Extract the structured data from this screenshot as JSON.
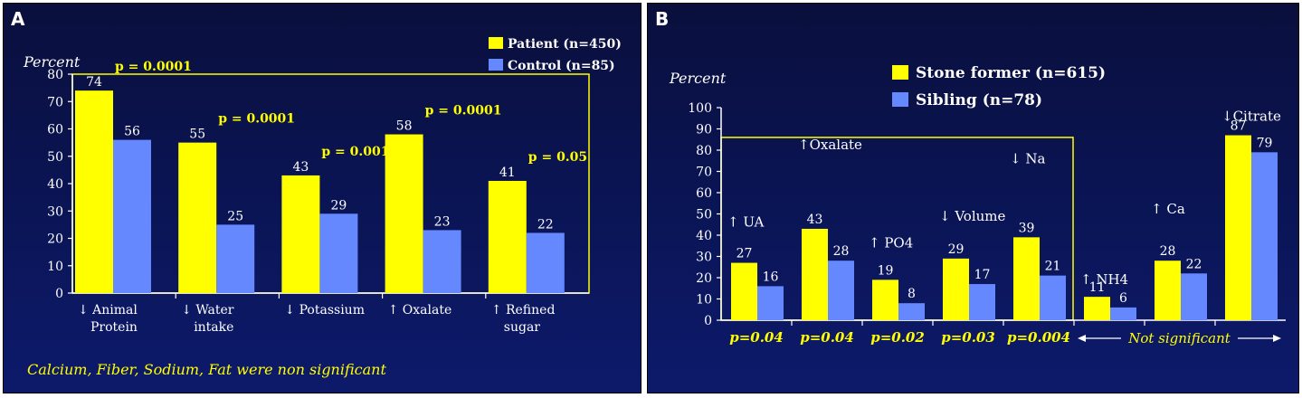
{
  "colors": {
    "series1": "#ffff00",
    "series2": "#6688ff",
    "text": "#ffffff",
    "highlight": "#ffff00",
    "axis": "#ffffff"
  },
  "chart_data": [
    {
      "type": "bar",
      "panel_label": "A",
      "ylabel": "Percent",
      "ylim": [
        0,
        80
      ],
      "yticks": [
        "0",
        "10",
        "20",
        "30",
        "40",
        "50",
        "60",
        "70",
        "80"
      ],
      "legend": [
        "Patient (n=450)",
        "Control (n=85)"
      ],
      "categories": [
        {
          "line1": "↓ Animal",
          "line2": "Protein"
        },
        {
          "line1": "↓ Water",
          "line2": "intake"
        },
        {
          "line1": "↓ Potassium",
          "line2": ""
        },
        {
          "line1": "↑ Oxalate",
          "line2": ""
        },
        {
          "line1": "↑ Refined",
          "line2": "sugar"
        }
      ],
      "series": [
        {
          "name": "Patient (n=450)",
          "values": [
            74,
            55,
            43,
            58,
            41
          ]
        },
        {
          "name": "Control (n=85)",
          "values": [
            56,
            25,
            29,
            23,
            22
          ]
        }
      ],
      "value_labels": [
        [
          "74",
          "55",
          "43",
          "58",
          "41"
        ],
        [
          "56",
          "25",
          "29",
          "23",
          "22"
        ]
      ],
      "pvalues": [
        "p = 0.0001",
        "p = 0.0001",
        "p = 0.001",
        "p = 0.0001",
        "p = 0.05"
      ],
      "footnote": "Calcium, Fiber, Sodium, Fat were non significant"
    },
    {
      "type": "bar",
      "panel_label": "B",
      "ylabel": "Percent",
      "ylim": [
        0,
        100
      ],
      "yticks": [
        "0",
        "10",
        "20",
        "30",
        "40",
        "50",
        "60",
        "70",
        "80",
        "90",
        "100"
      ],
      "legend": [
        "Stone former (n=615)",
        "Sibling (n=78)"
      ],
      "categories": [
        "↑ UA",
        "↑Oxalate",
        "↑ PO4",
        "↓ Volume",
        "↓ Na",
        "↑ NH4",
        "↑ Ca",
        "↓Citrate"
      ],
      "series": [
        {
          "name": "Stone former (n=615)",
          "values": [
            27,
            43,
            19,
            29,
            39,
            11,
            28,
            87
          ]
        },
        {
          "name": "Sibling (n=78)",
          "values": [
            16,
            28,
            8,
            17,
            21,
            6,
            22,
            79
          ]
        }
      ],
      "value_labels": [
        [
          "27",
          "43",
          "19",
          "29",
          "39",
          "11",
          "28",
          "87"
        ],
        [
          "16",
          "28",
          "8",
          "17",
          "21",
          "6",
          "22",
          "79"
        ]
      ],
      "pvalues": [
        "p=0.04",
        "p=0.04",
        "p=0.02",
        "p=0.03",
        "p=0.004"
      ],
      "not_significant": "Not significant"
    }
  ]
}
